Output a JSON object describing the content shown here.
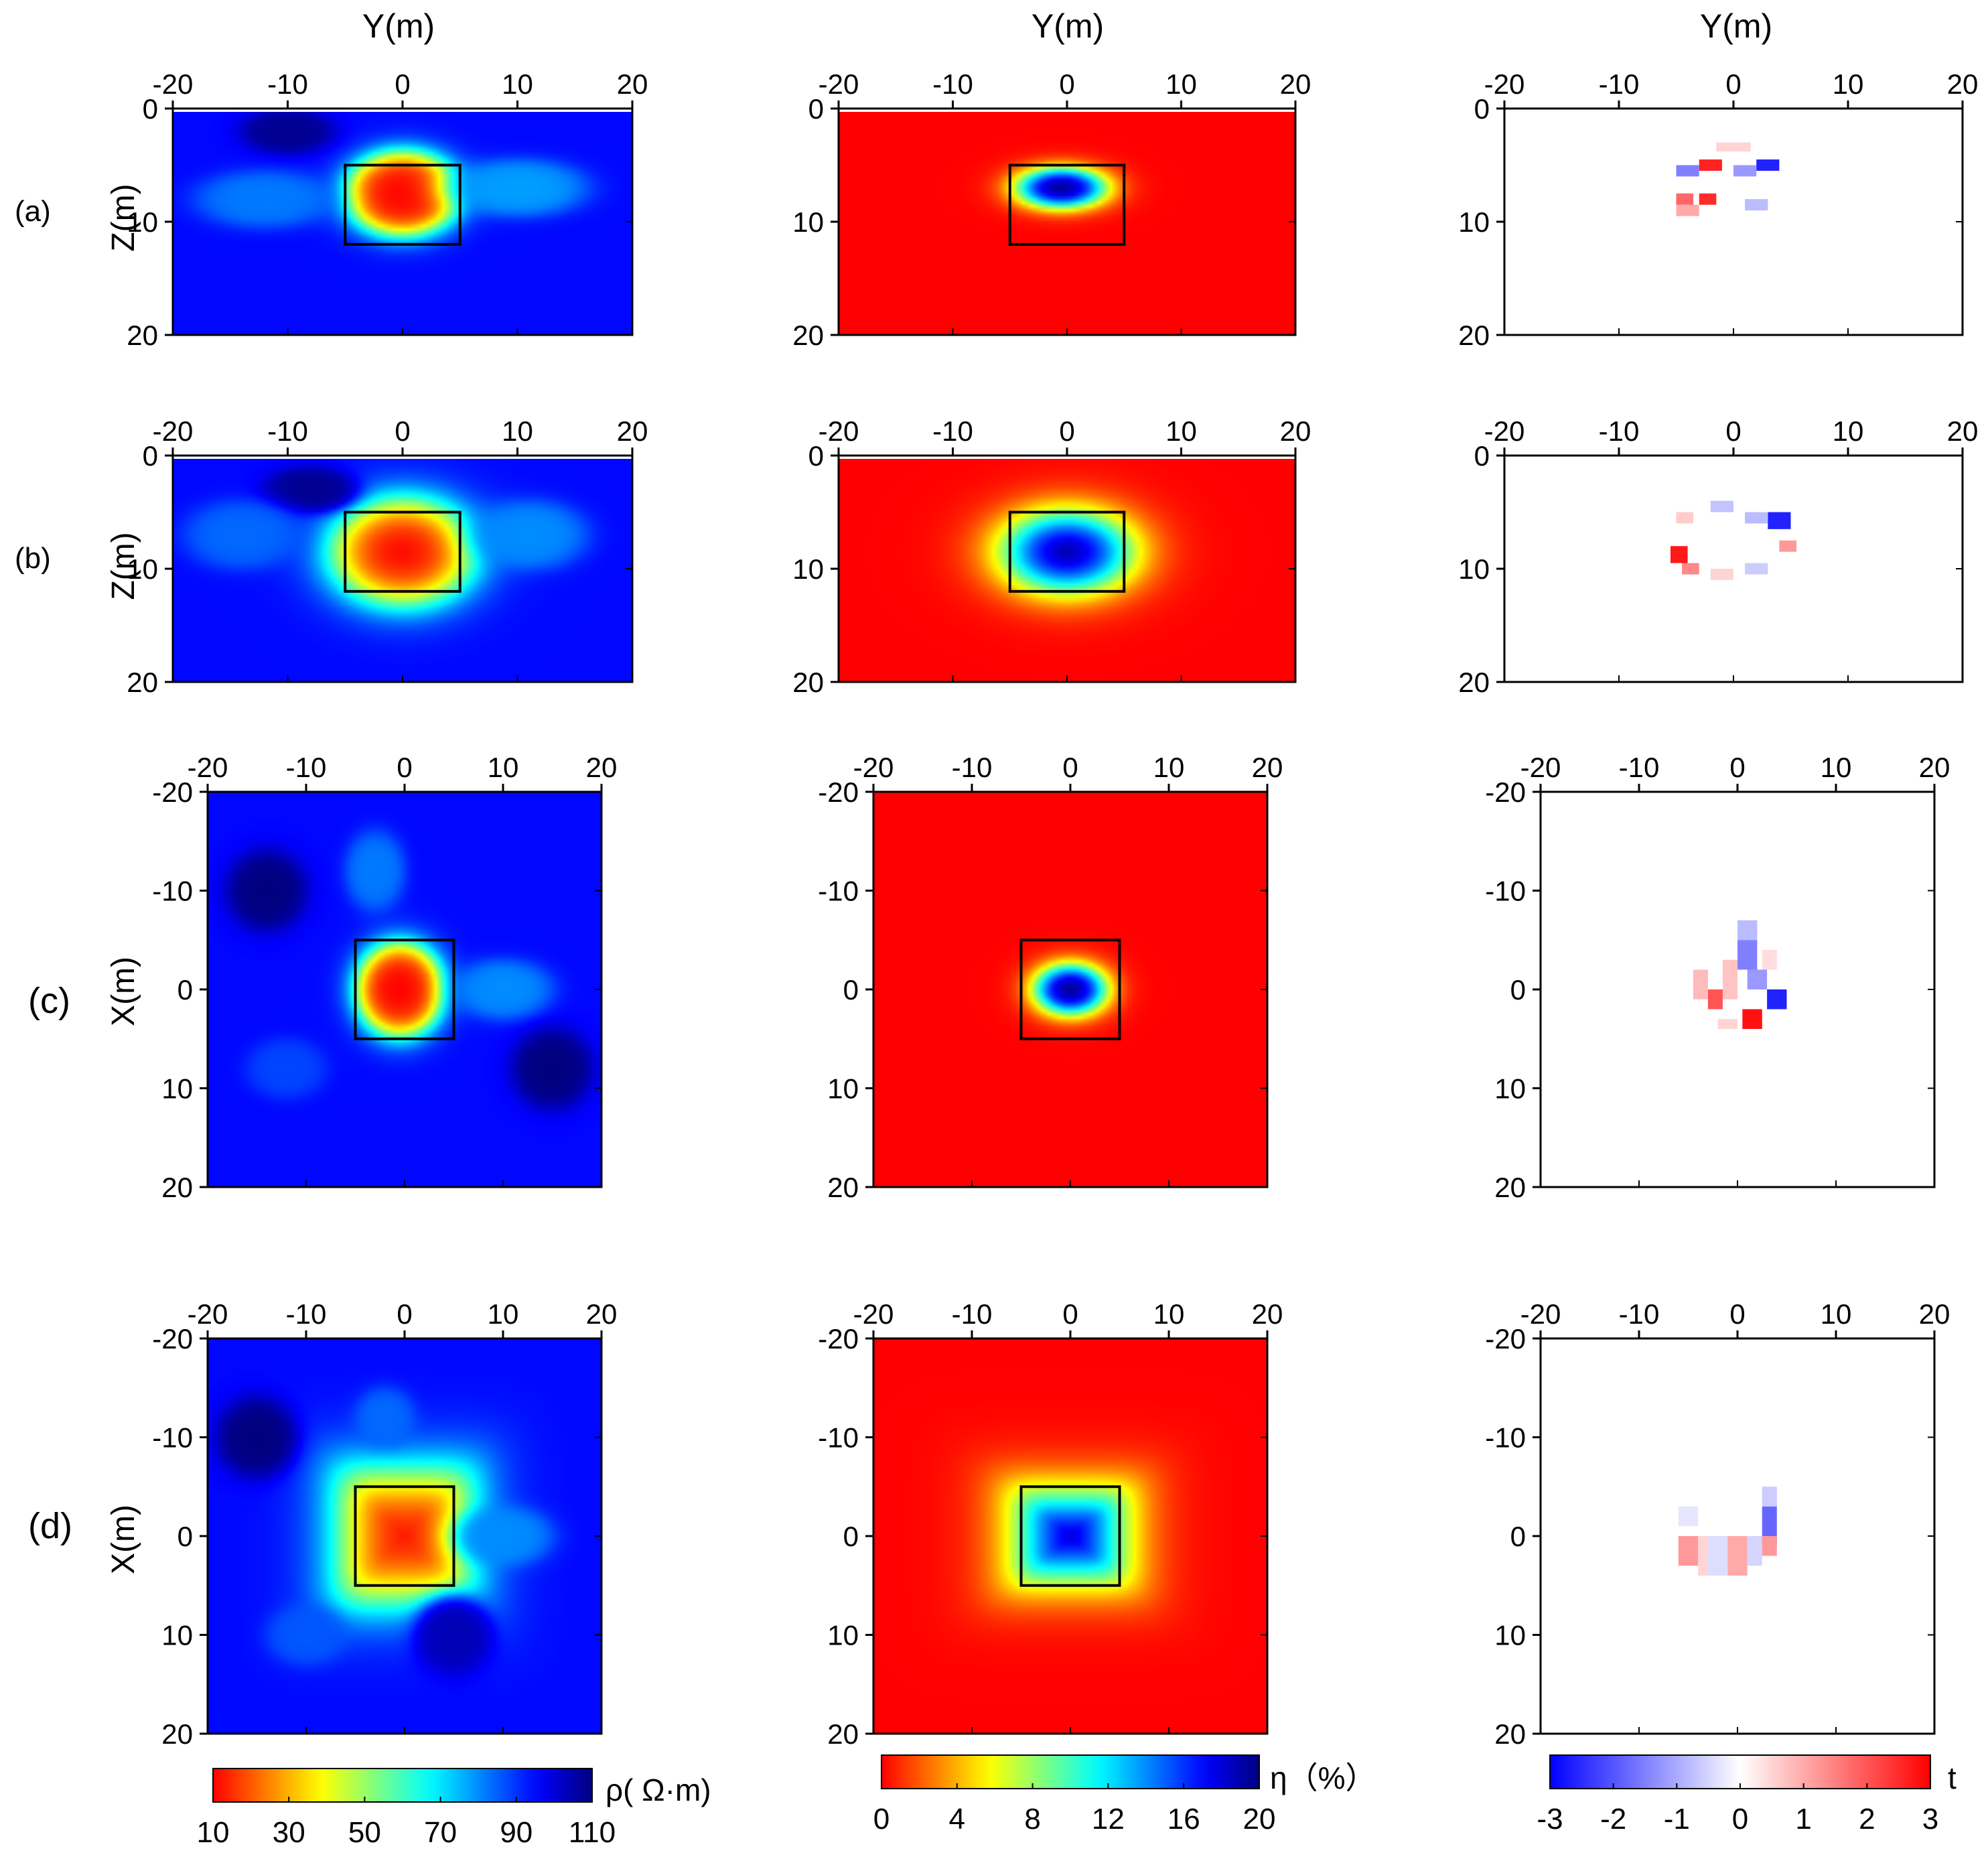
{
  "figure": {
    "row_labels": [
      "(a)",
      "(b)",
      "(c)",
      "(d)"
    ],
    "axis_title_top": "Y(m)",
    "ylabels": {
      "a": "Z(m)",
      "b": "Z(m)",
      "c": "X(m)",
      "d": "X(m)"
    }
  },
  "chart_data": [
    {
      "type": "heatmap",
      "panel": "a-resistivity",
      "title": "",
      "xlabel": "Y(m)",
      "ylabel": "Z(m)",
      "xlim": [
        -20,
        20
      ],
      "ylim": [
        0,
        20
      ],
      "xticks": [
        -20,
        -10,
        0,
        10,
        20
      ],
      "yticks": [
        0,
        10,
        20
      ],
      "background": 95,
      "anomalies": [
        {
          "cx": 0,
          "cy": 7.5,
          "rx": 4.8,
          "ry": 3.6,
          "value": 10,
          "soft": 2.6
        },
        {
          "cx": -10,
          "cy": 2,
          "rx": 4,
          "ry": 2,
          "value": 108,
          "soft": 3
        },
        {
          "cx": 10,
          "cy": 7,
          "rx": 6,
          "ry": 2.5,
          "value": 78,
          "soft": 3
        },
        {
          "cx": -12,
          "cy": 8,
          "rx": 6,
          "ry": 2.5,
          "value": 82,
          "soft": 3
        }
      ],
      "true_model_box": {
        "x": [
          -5,
          5
        ],
        "y": [
          5,
          12
        ]
      },
      "colormap": "resistivity"
    },
    {
      "type": "heatmap",
      "panel": "a-chargeability",
      "xlabel": "Y(m)",
      "ylabel": "",
      "xlim": [
        -20,
        20
      ],
      "ylim": [
        0,
        20
      ],
      "xticks": [
        -20,
        -10,
        0,
        10,
        20
      ],
      "yticks": [
        0,
        10,
        20
      ],
      "background": 0,
      "anomalies": [
        {
          "cx": -0.5,
          "cy": 7,
          "rx": 3.5,
          "ry": 1.6,
          "value": 20,
          "soft": 1.6
        }
      ],
      "true_model_box": {
        "x": [
          -5,
          5
        ],
        "y": [
          5,
          12
        ]
      },
      "colormap": "chargeability"
    },
    {
      "type": "heatmap",
      "panel": "a-tstat",
      "xlabel": "Y(m)",
      "ylabel": "",
      "xlim": [
        -20,
        20
      ],
      "ylim": [
        0,
        20
      ],
      "xticks": [
        -20,
        -10,
        0,
        10,
        20
      ],
      "yticks": [
        0,
        10,
        20
      ],
      "blocks": [
        {
          "x": -3,
          "y": 4.5,
          "w": 2,
          "h": 1,
          "value": 2.6
        },
        {
          "x": -5,
          "y": 5,
          "w": 2,
          "h": 1,
          "value": -1.5
        },
        {
          "x": 2,
          "y": 4.5,
          "w": 2,
          "h": 1,
          "value": -2.6
        },
        {
          "x": 0,
          "y": 5,
          "w": 2,
          "h": 1,
          "value": -1.2
        },
        {
          "x": -5,
          "y": 7.5,
          "w": 1.5,
          "h": 1,
          "value": 1.8
        },
        {
          "x": -3,
          "y": 7.5,
          "w": 1.5,
          "h": 1,
          "value": 2.5
        },
        {
          "x": -5,
          "y": 8.5,
          "w": 2,
          "h": 1,
          "value": 1
        },
        {
          "x": 1,
          "y": 8,
          "w": 2,
          "h": 1,
          "value": -0.8
        },
        {
          "x": -1.5,
          "y": 3,
          "w": 3,
          "h": 0.8,
          "value": 0.5
        }
      ],
      "colormap": "tstat"
    },
    {
      "type": "heatmap",
      "panel": "b-resistivity",
      "xlabel": "",
      "ylabel": "Z(m)",
      "xlim": [
        -20,
        20
      ],
      "ylim": [
        0,
        20
      ],
      "xticks": [
        -20,
        -10,
        0,
        10,
        20
      ],
      "yticks": [
        0,
        10,
        20
      ],
      "background": 95,
      "anomalies": [
        {
          "cx": 0,
          "cy": 8.5,
          "rx": 5.8,
          "ry": 4.4,
          "value": 10,
          "soft": 1.9
        },
        {
          "cx": -8,
          "cy": 3,
          "rx": 4,
          "ry": 2,
          "value": 108,
          "soft": 3
        },
        {
          "cx": 11,
          "cy": 7,
          "rx": 5,
          "ry": 3,
          "value": 80,
          "soft": 3
        },
        {
          "cx": -14,
          "cy": 7,
          "rx": 5,
          "ry": 3,
          "value": 84,
          "soft": 3
        }
      ],
      "true_model_box": {
        "x": [
          -5,
          5
        ],
        "y": [
          5,
          12
        ]
      },
      "colormap": "resistivity"
    },
    {
      "type": "heatmap",
      "panel": "b-chargeability",
      "xlabel": "",
      "ylabel": "",
      "xlim": [
        -20,
        20
      ],
      "ylim": [
        0,
        20
      ],
      "xticks": [
        -20,
        -10,
        0,
        10,
        20
      ],
      "yticks": [
        0,
        10,
        20
      ],
      "background": 0,
      "anomalies": [
        {
          "cx": 0,
          "cy": 8.5,
          "rx": 4.9,
          "ry": 3.1,
          "value": 20,
          "soft": 1.3
        }
      ],
      "true_model_box": {
        "x": [
          -5,
          5
        ],
        "y": [
          5,
          12
        ]
      },
      "colormap": "chargeability"
    },
    {
      "type": "heatmap",
      "panel": "b-tstat",
      "xlabel": "",
      "ylabel": "",
      "xlim": [
        -20,
        20
      ],
      "ylim": [
        0,
        20
      ],
      "xticks": [
        -20,
        -10,
        0,
        10,
        20
      ],
      "yticks": [
        0,
        10,
        20
      ],
      "blocks": [
        {
          "x": -5.5,
          "y": 8,
          "w": 1.5,
          "h": 1.5,
          "value": 2.7
        },
        {
          "x": -4.5,
          "y": 9.5,
          "w": 1.5,
          "h": 1,
          "value": 1.4
        },
        {
          "x": 3,
          "y": 5,
          "w": 2,
          "h": 1.5,
          "value": -2.6
        },
        {
          "x": 1,
          "y": 5,
          "w": 2,
          "h": 1,
          "value": -0.8
        },
        {
          "x": -2,
          "y": 4,
          "w": 2,
          "h": 1,
          "value": -0.7
        },
        {
          "x": 4,
          "y": 7.5,
          "w": 1.5,
          "h": 1,
          "value": 1.2
        },
        {
          "x": 1,
          "y": 9.5,
          "w": 2,
          "h": 1,
          "value": -0.6
        },
        {
          "x": -5,
          "y": 5,
          "w": 1.5,
          "h": 1,
          "value": 0.6
        },
        {
          "x": -2,
          "y": 10,
          "w": 2,
          "h": 1,
          "value": 0.5
        }
      ],
      "colormap": "tstat"
    },
    {
      "type": "heatmap",
      "panel": "c-resistivity",
      "xlabel": "",
      "ylabel": "X(m)",
      "xlim": [
        -20,
        20
      ],
      "ylim": [
        -20,
        20
      ],
      "xticks": [
        -20,
        -10,
        0,
        10,
        20
      ],
      "yticks": [
        -20,
        -10,
        0,
        10,
        20
      ],
      "background": 95,
      "anomalies": [
        {
          "cx": -0.5,
          "cy": 0,
          "rx": 4.3,
          "ry": 4.6,
          "value": 10,
          "soft": 2.5
        },
        {
          "cx": 10,
          "cy": 0,
          "rx": 5,
          "ry": 3,
          "value": 80,
          "soft": 3
        },
        {
          "cx": -14,
          "cy": -10,
          "rx": 4,
          "ry": 4,
          "value": 110,
          "soft": 3
        },
        {
          "cx": 15,
          "cy": 8,
          "rx": 4,
          "ry": 4,
          "value": 110,
          "soft": 3
        },
        {
          "cx": -3,
          "cy": -12,
          "rx": 3,
          "ry": 4,
          "value": 82,
          "soft": 3
        },
        {
          "cx": -12,
          "cy": 8,
          "rx": 4,
          "ry": 3,
          "value": 88,
          "soft": 3
        }
      ],
      "true_model_box": {
        "x": [
          -5,
          5
        ],
        "y": [
          -5,
          5
        ]
      },
      "colormap": "resistivity"
    },
    {
      "type": "heatmap",
      "panel": "c-chargeability",
      "xlabel": "",
      "ylabel": "",
      "xlim": [
        -20,
        20
      ],
      "ylim": [
        -20,
        20
      ],
      "xticks": [
        -20,
        -10,
        0,
        10,
        20
      ],
      "yticks": [
        -20,
        -10,
        0,
        10,
        20
      ],
      "background": 0,
      "anomalies": [
        {
          "cx": 0,
          "cy": 0,
          "rx": 3.3,
          "ry": 2.3,
          "value": 20,
          "soft": 1.6
        }
      ],
      "true_model_box": {
        "x": [
          -5,
          5
        ],
        "y": [
          -5,
          5
        ]
      },
      "colormap": "chargeability"
    },
    {
      "type": "heatmap",
      "panel": "c-tstat",
      "xlabel": "",
      "ylabel": "",
      "xlim": [
        -20,
        20
      ],
      "ylim": [
        -20,
        20
      ],
      "xticks": [
        -20,
        -10,
        0,
        10,
        20
      ],
      "yticks": [
        -20,
        -10,
        0,
        10,
        20
      ],
      "blocks": [
        {
          "x": 0,
          "y": -7,
          "w": 2,
          "h": 2,
          "value": -0.8
        },
        {
          "x": 0,
          "y": -5,
          "w": 2,
          "h": 3,
          "value": -1.5
        },
        {
          "x": 1,
          "y": -2,
          "w": 2,
          "h": 2,
          "value": -1.2
        },
        {
          "x": 3,
          "y": 0,
          "w": 2,
          "h": 2,
          "value": -2.6
        },
        {
          "x": 0.5,
          "y": 2,
          "w": 2,
          "h": 2,
          "value": 2.8
        },
        {
          "x": -3,
          "y": 0,
          "w": 1.5,
          "h": 2,
          "value": 2
        },
        {
          "x": -4.5,
          "y": -2,
          "w": 1.5,
          "h": 3,
          "value": 0.8
        },
        {
          "x": -1.5,
          "y": -3,
          "w": 1.5,
          "h": 4,
          "value": 0.7
        },
        {
          "x": 2.5,
          "y": -4,
          "w": 1.5,
          "h": 2,
          "value": 0.4
        },
        {
          "x": -2,
          "y": 3,
          "w": 2,
          "h": 1,
          "value": 0.5
        }
      ],
      "colormap": "tstat"
    },
    {
      "type": "heatmap",
      "panel": "d-resistivity",
      "xlabel": "",
      "ylabel": "X(m)",
      "xlim": [
        -20,
        20
      ],
      "ylim": [
        -20,
        20
      ],
      "xticks": [
        -20,
        -10,
        0,
        10,
        20
      ],
      "yticks": [
        -20,
        -10,
        0,
        10,
        20
      ],
      "background": 95,
      "anomalies": [
        {
          "cx": 0,
          "cy": 0,
          "rx": 6.2,
          "ry": 6.2,
          "value": 10,
          "soft": 1.5,
          "shape": "square"
        },
        {
          "cx": 10,
          "cy": 0,
          "rx": 5,
          "ry": 3,
          "value": 80,
          "soft": 3
        },
        {
          "cx": -15,
          "cy": -10,
          "rx": 4,
          "ry": 4,
          "value": 110,
          "soft": 3
        },
        {
          "cx": -2,
          "cy": -12,
          "rx": 3,
          "ry": 3,
          "value": 84,
          "soft": 3
        },
        {
          "cx": 5,
          "cy": 10,
          "rx": 4,
          "ry": 4,
          "value": 104,
          "soft": 3
        },
        {
          "cx": -10,
          "cy": 10,
          "rx": 4,
          "ry": 3,
          "value": 86,
          "soft": 3
        }
      ],
      "true_model_box": {
        "x": [
          -5,
          5
        ],
        "y": [
          -5,
          5
        ]
      },
      "colormap": "resistivity"
    },
    {
      "type": "heatmap",
      "panel": "d-chargeability",
      "xlabel": "",
      "ylabel": "",
      "xlim": [
        -20,
        20
      ],
      "ylim": [
        -20,
        20
      ],
      "xticks": [
        -20,
        -10,
        0,
        10,
        20
      ],
      "yticks": [
        -20,
        -10,
        0,
        10,
        20
      ],
      "background": 0,
      "anomalies": [
        {
          "cx": 0,
          "cy": 0,
          "rx": 4.6,
          "ry": 3.8,
          "value": 20,
          "soft": 1.0,
          "shape": "square"
        }
      ],
      "true_model_box": {
        "x": [
          -5,
          5
        ],
        "y": [
          -5,
          5
        ]
      },
      "colormap": "chargeability"
    },
    {
      "type": "heatmap",
      "panel": "d-tstat",
      "xlabel": "",
      "ylabel": "",
      "xlim": [
        -20,
        20
      ],
      "ylim": [
        -20,
        20
      ],
      "xticks": [
        -20,
        -10,
        0,
        10,
        20
      ],
      "yticks": [
        -20,
        -10,
        0,
        10,
        20
      ],
      "blocks": [
        {
          "x": 2.5,
          "y": -3,
          "w": 1.5,
          "h": 4,
          "value": -1.8
        },
        {
          "x": 2.5,
          "y": -5,
          "w": 1.5,
          "h": 2,
          "value": -0.6
        },
        {
          "x": -6,
          "y": 0,
          "w": 2,
          "h": 3,
          "value": 1.2
        },
        {
          "x": -3,
          "y": 0,
          "w": 2,
          "h": 4,
          "value": -0.4
        },
        {
          "x": -1,
          "y": 0,
          "w": 2,
          "h": 4,
          "value": 1
        },
        {
          "x": 1,
          "y": 0,
          "w": 1.5,
          "h": 3,
          "value": -0.5
        },
        {
          "x": 2.5,
          "y": 0,
          "w": 1.5,
          "h": 2,
          "value": 1.2
        },
        {
          "x": -4,
          "y": 0,
          "w": 1,
          "h": 4,
          "value": 0.5
        },
        {
          "x": -6,
          "y": -3,
          "w": 2,
          "h": 2,
          "value": -0.3
        }
      ],
      "colormap": "tstat"
    }
  ],
  "colorbars": [
    {
      "label": "ρ( Ω·m)",
      "ticks": [
        "10",
        "30",
        "50",
        "70",
        "90",
        "110"
      ],
      "colormap": "resistivity"
    },
    {
      "label": "η（%）",
      "ticks": [
        "0",
        "4",
        "8",
        "12",
        "16",
        "20"
      ],
      "colormap": "chargeability"
    },
    {
      "label": "t",
      "ticks": [
        "-3",
        "-2",
        "-1",
        "0",
        "1",
        "2",
        "3"
      ],
      "colormap": "tstat"
    }
  ],
  "colors": {
    "jet": [
      "#00007f",
      "#0000ff",
      "#007fff",
      "#00ffff",
      "#7fff7f",
      "#ffff00",
      "#ff7f00",
      "#ff0000"
    ],
    "tstat": [
      "#0000ff",
      "#ffffff",
      "#ff0000"
    ]
  }
}
